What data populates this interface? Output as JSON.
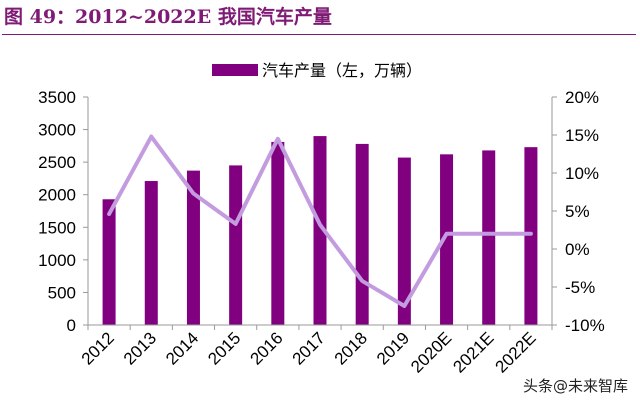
{
  "header": {
    "title": "图 49：2012~2022E 我国汽车产量"
  },
  "watermark": {
    "text": "头条@未来智库"
  },
  "chart_data": {
    "type": "bar",
    "categories": [
      "2012",
      "2013",
      "2014",
      "2015",
      "2016",
      "2017",
      "2018",
      "2019",
      "2020E",
      "2021E",
      "2022E"
    ],
    "series": [
      {
        "name": "汽车产量（左，万辆）",
        "type": "bar",
        "axis": "left",
        "color": "#800080",
        "values": [
          1930,
          2210,
          2370,
          2450,
          2810,
          2900,
          2780,
          2570,
          2620,
          2680,
          2730
        ]
      },
      {
        "name": "",
        "type": "line",
        "axis": "right",
        "color": "#c39bdf",
        "values": [
          4.6,
          14.8,
          7.3,
          3.3,
          14.5,
          3.2,
          -4.2,
          -7.5,
          2.0,
          2.0,
          2.0
        ]
      }
    ],
    "y_left": {
      "ylim": [
        0,
        3500
      ],
      "ticks": [
        0,
        500,
        1000,
        1500,
        2000,
        2500,
        3000,
        3500
      ]
    },
    "y_right": {
      "ylim": [
        -10,
        20
      ],
      "ticks": [
        -10,
        -5,
        0,
        5,
        10,
        15,
        20
      ],
      "tick_suffix": "%"
    },
    "legend": {
      "position": "top-center"
    },
    "grid": false
  }
}
